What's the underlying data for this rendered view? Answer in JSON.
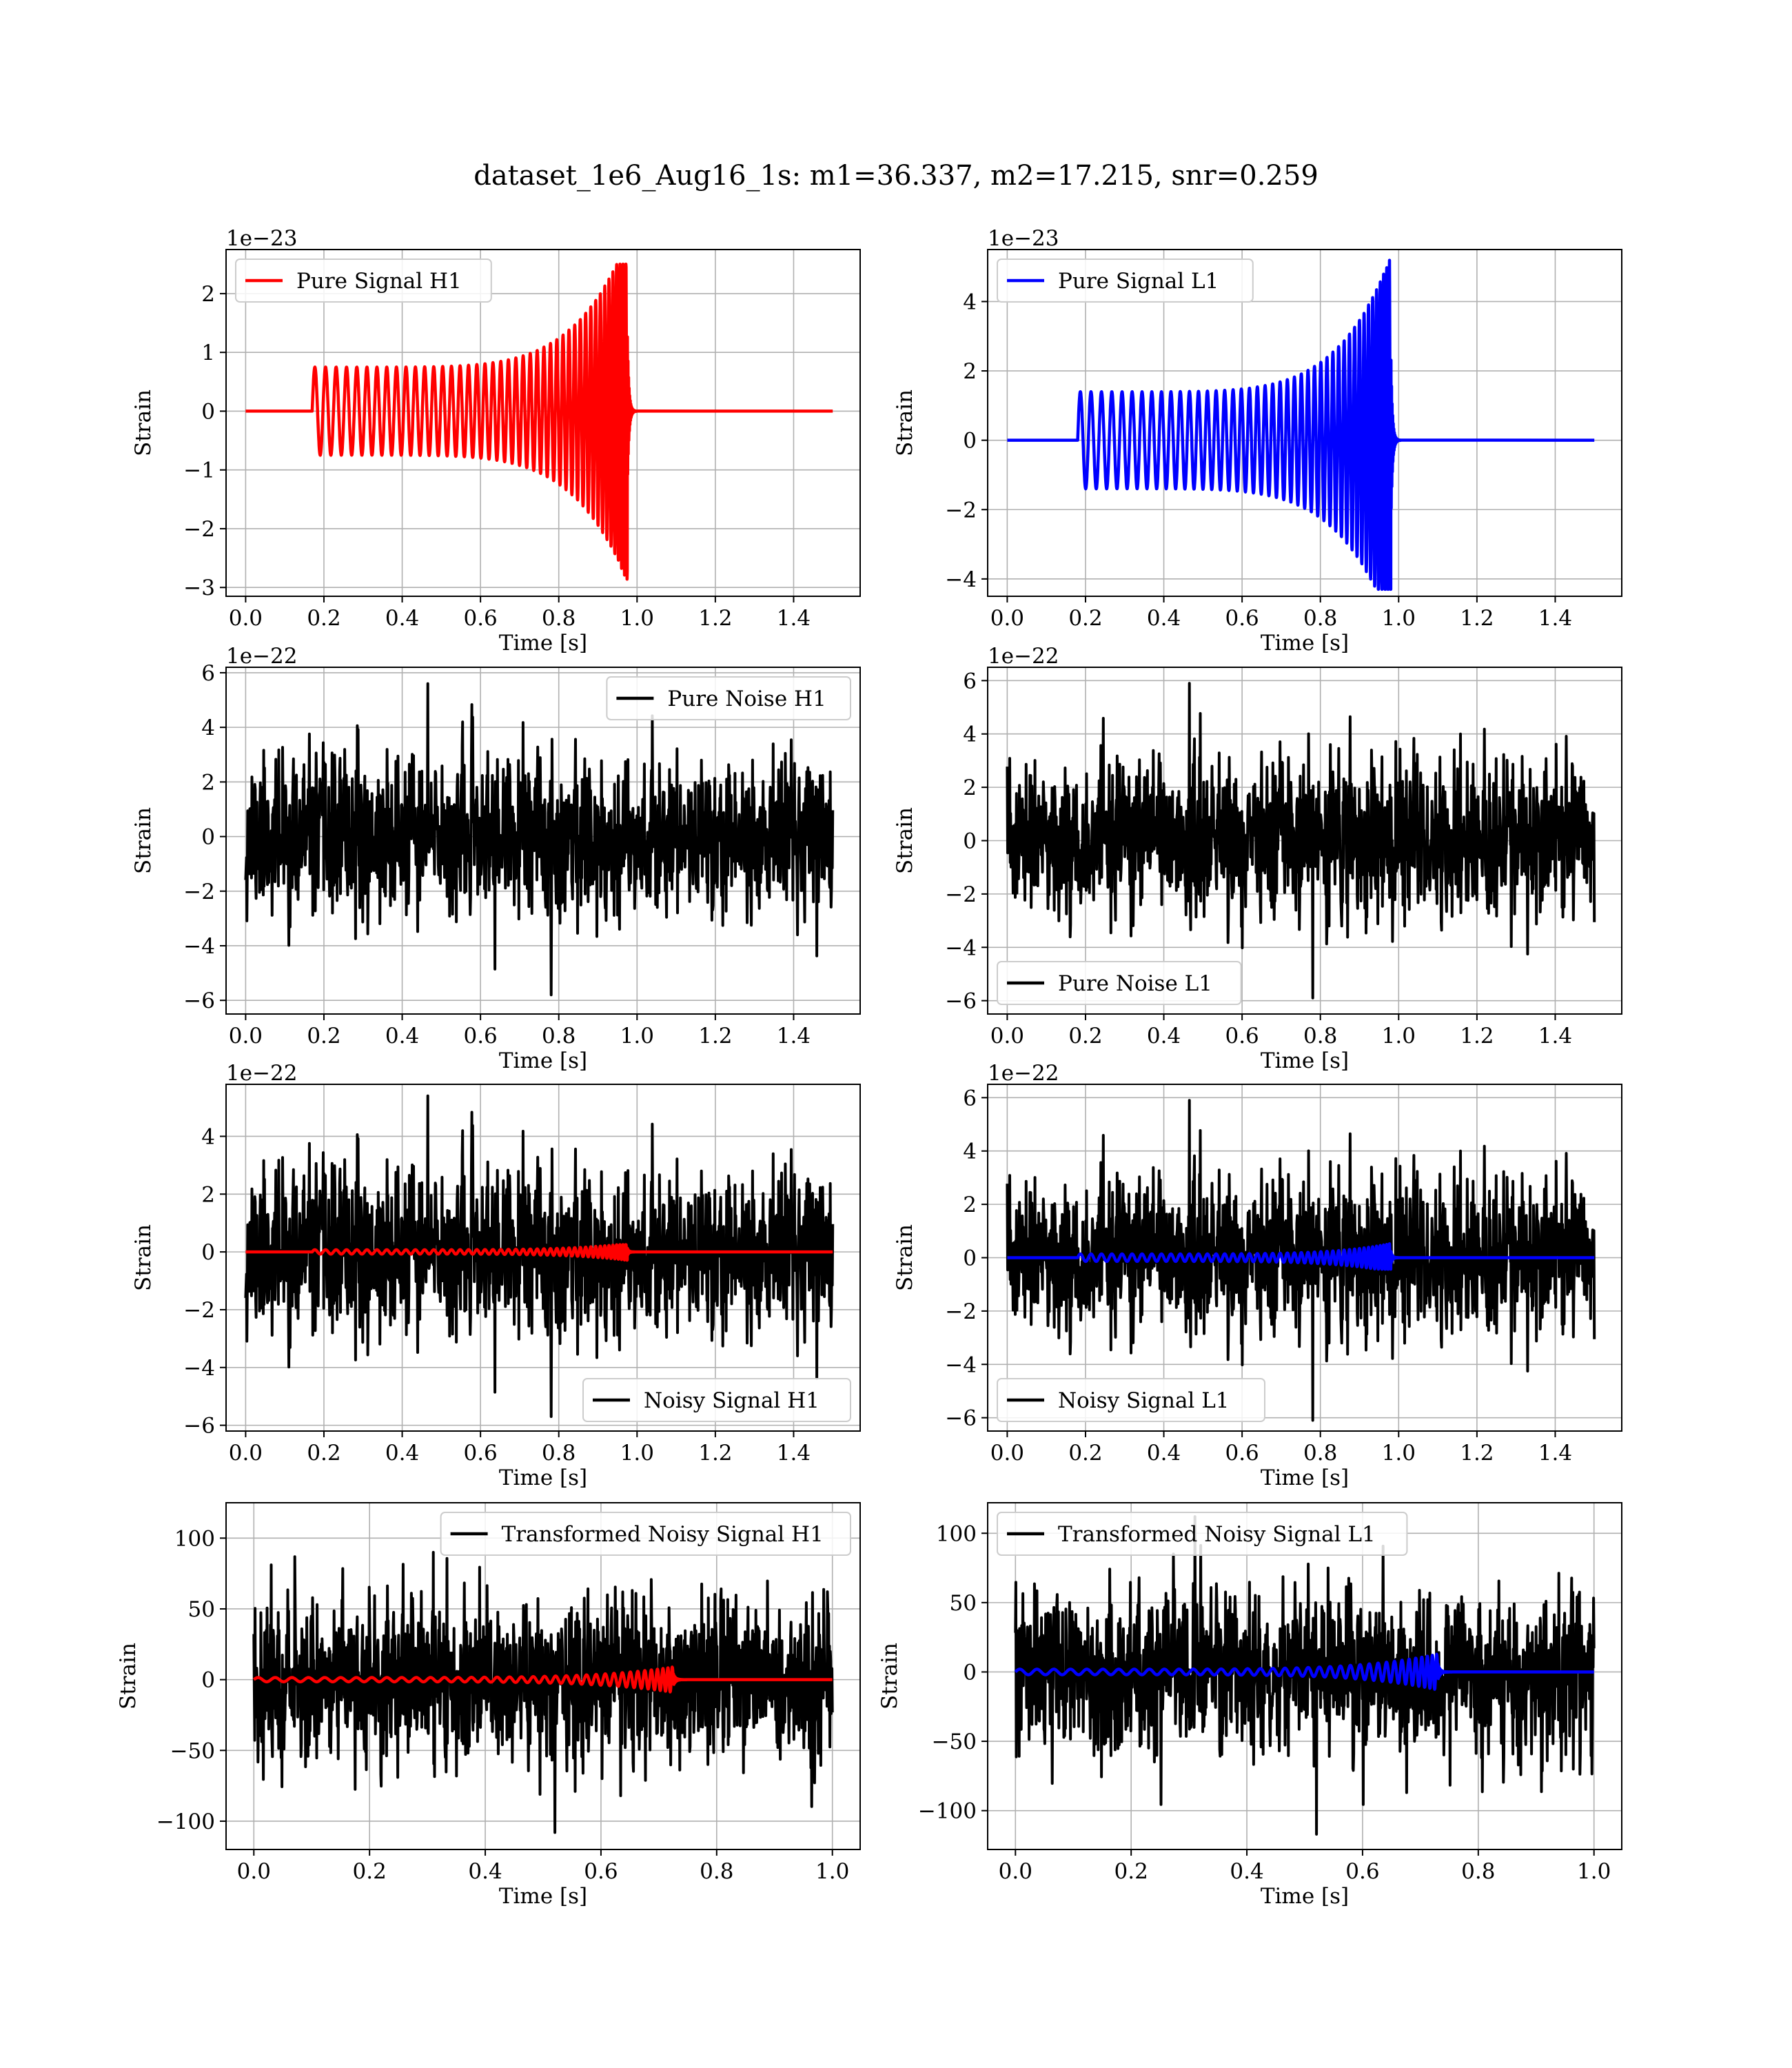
{
  "figure": {
    "suptitle": "dataset_1e6_Aug16_1s: m1=36.337, m2=17.215, snr=0.259"
  },
  "chart_data": [
    {
      "id": "pure-signal-h1",
      "type": "line",
      "xlabel": "Time [s]",
      "ylabel": "Strain",
      "offset_text": "1e−23",
      "xlim": [
        -0.05,
        1.57
      ],
      "ylim": [
        -3.15,
        2.75
      ],
      "xticks": [
        0.0,
        0.2,
        0.4,
        0.6,
        0.8,
        1.0,
        1.2,
        1.4
      ],
      "yticks": [
        -3,
        -2,
        -1,
        0,
        1,
        2
      ],
      "legend": {
        "position": "upper-left"
      },
      "series": [
        {
          "name": "Pure Signal H1",
          "kind": "chirp",
          "color": "#ff0000",
          "t_start": 0.17,
          "t_merge": 0.975,
          "t_end": 1.5,
          "amp_start": 0.75,
          "amp_peak": 2.5,
          "amp_min": -2.9,
          "cycles": 48,
          "scale": 1
        }
      ]
    },
    {
      "id": "pure-signal-l1",
      "type": "line",
      "xlabel": "Time [s]",
      "ylabel": "Strain",
      "offset_text": "1e−23",
      "xlim": [
        -0.05,
        1.57
      ],
      "ylim": [
        -4.5,
        5.5
      ],
      "xticks": [
        0.0,
        0.2,
        0.4,
        0.6,
        0.8,
        1.0,
        1.2,
        1.4
      ],
      "yticks": [
        -4,
        -2,
        0,
        2,
        4
      ],
      "legend": {
        "position": "upper-left"
      },
      "series": [
        {
          "name": "Pure Signal L1",
          "kind": "chirp",
          "color": "#0000ff",
          "t_start": 0.18,
          "t_merge": 0.98,
          "t_end": 1.5,
          "amp_start": 1.4,
          "amp_peak": 5.3,
          "amp_min": -4.3,
          "cycles": 48,
          "scale": 1
        }
      ]
    },
    {
      "id": "pure-noise-h1",
      "type": "line",
      "xlabel": "Time [s]",
      "ylabel": "Strain",
      "offset_text": "1e−22",
      "xlim": [
        -0.05,
        1.57
      ],
      "ylim": [
        -6.5,
        6.2
      ],
      "xticks": [
        0.0,
        0.2,
        0.4,
        0.6,
        0.8,
        1.0,
        1.2,
        1.4
      ],
      "yticks": [
        -6,
        -4,
        -2,
        0,
        2,
        4,
        6
      ],
      "legend": {
        "position": "upper-right"
      },
      "series": [
        {
          "name": "Pure Noise H1",
          "kind": "noise",
          "color": "#000000",
          "t_start": 0.0,
          "t_end": 1.5,
          "sigma": 1.4,
          "peak_max": 5.6,
          "peak_min": -5.8,
          "seed": 11
        }
      ]
    },
    {
      "id": "pure-noise-l1",
      "type": "line",
      "xlabel": "Time [s]",
      "ylabel": "Strain",
      "offset_text": "1e−22",
      "xlim": [
        -0.05,
        1.57
      ],
      "ylim": [
        -6.5,
        6.5
      ],
      "xticks": [
        0.0,
        0.2,
        0.4,
        0.6,
        0.8,
        1.0,
        1.2,
        1.4
      ],
      "yticks": [
        -6,
        -4,
        -2,
        0,
        2,
        4,
        6
      ],
      "legend": {
        "position": "lower-left"
      },
      "series": [
        {
          "name": "Pure Noise L1",
          "kind": "noise",
          "color": "#000000",
          "t_start": 0.0,
          "t_end": 1.5,
          "sigma": 1.4,
          "peak_max": 5.9,
          "peak_min": -5.9,
          "seed": 23
        }
      ]
    },
    {
      "id": "noisy-signal-h1",
      "type": "line",
      "xlabel": "Time [s]",
      "ylabel": "Strain",
      "offset_text": "1e−22",
      "xlim": [
        -0.05,
        1.57
      ],
      "ylim": [
        -6.2,
        5.8
      ],
      "xticks": [
        0.0,
        0.2,
        0.4,
        0.6,
        0.8,
        1.0,
        1.2,
        1.4
      ],
      "yticks": [
        -6,
        -4,
        -2,
        0,
        2,
        4
      ],
      "legend": {
        "position": "lower-right"
      },
      "series": [
        {
          "name": "Noisy Signal H1",
          "kind": "noise",
          "color": "#000000",
          "t_start": 0.0,
          "t_end": 1.5,
          "sigma": 1.4,
          "peak_max": 5.4,
          "peak_min": -5.7,
          "seed": 11
        },
        {
          "name": "",
          "kind": "chirp",
          "color": "#ff0000",
          "t_start": 0.17,
          "t_merge": 0.975,
          "t_end": 1.5,
          "amp_start": 0.75,
          "amp_peak": 2.5,
          "amp_min": -2.9,
          "cycles": 48,
          "scale": 0.1
        }
      ]
    },
    {
      "id": "noisy-signal-l1",
      "type": "line",
      "xlabel": "Time [s]",
      "ylabel": "Strain",
      "offset_text": "1e−22",
      "xlim": [
        -0.05,
        1.57
      ],
      "ylim": [
        -6.5,
        6.5
      ],
      "xticks": [
        0.0,
        0.2,
        0.4,
        0.6,
        0.8,
        1.0,
        1.2,
        1.4
      ],
      "yticks": [
        -6,
        -4,
        -2,
        0,
        2,
        4,
        6
      ],
      "legend": {
        "position": "lower-left"
      },
      "series": [
        {
          "name": "Noisy Signal L1",
          "kind": "noise",
          "color": "#000000",
          "t_start": 0.0,
          "t_end": 1.5,
          "sigma": 1.4,
          "peak_max": 5.9,
          "peak_min": -6.1,
          "seed": 23
        },
        {
          "name": "",
          "kind": "chirp",
          "color": "#0000ff",
          "t_start": 0.18,
          "t_merge": 0.98,
          "t_end": 1.5,
          "amp_start": 1.4,
          "amp_peak": 5.3,
          "amp_min": -4.3,
          "cycles": 48,
          "scale": 0.1
        }
      ]
    },
    {
      "id": "transformed-noisy-signal-h1",
      "type": "line",
      "xlabel": "Time [s]",
      "ylabel": "Strain",
      "offset_text": "",
      "xlim": [
        -0.048,
        1.048
      ],
      "ylim": [
        -120,
        125
      ],
      "xticks": [
        0.0,
        0.2,
        0.4,
        0.6,
        0.8,
        1.0
      ],
      "yticks": [
        -100,
        -50,
        0,
        50,
        100
      ],
      "legend": {
        "position": "upper-right"
      },
      "series": [
        {
          "name": "Transformed Noisy Signal H1",
          "kind": "noise",
          "color": "#000000",
          "t_start": 0.0,
          "t_end": 1.0,
          "sigma": 28,
          "peak_max": 90,
          "peak_min": -108,
          "seed": 37
        },
        {
          "name": "",
          "kind": "chirp",
          "color": "#ff0000",
          "t_start": 0.0,
          "t_merge": 0.725,
          "t_end": 1.0,
          "amp_start": 1.5,
          "amp_peak": 9,
          "amp_min": -9,
          "cycles": 40,
          "scale": 1
        }
      ]
    },
    {
      "id": "transformed-noisy-signal-l1",
      "type": "line",
      "xlabel": "Time [s]",
      "ylabel": "Strain",
      "offset_text": "",
      "xlim": [
        -0.048,
        1.048
      ],
      "ylim": [
        -128,
        122
      ],
      "xticks": [
        0.0,
        0.2,
        0.4,
        0.6,
        0.8,
        1.0
      ],
      "yticks": [
        -100,
        -50,
        0,
        50,
        100
      ],
      "legend": {
        "position": "upper-left"
      },
      "series": [
        {
          "name": "Transformed Noisy Signal L1",
          "kind": "noise",
          "color": "#000000",
          "t_start": 0.0,
          "t_end": 1.0,
          "sigma": 28,
          "peak_max": 112,
          "peak_min": -117,
          "seed": 53
        },
        {
          "name": "",
          "kind": "chirp",
          "color": "#0000ff",
          "t_start": 0.0,
          "t_merge": 0.73,
          "t_end": 1.0,
          "amp_start": 2.0,
          "amp_peak": 13,
          "amp_min": -13,
          "cycles": 40,
          "scale": 1
        }
      ]
    }
  ]
}
